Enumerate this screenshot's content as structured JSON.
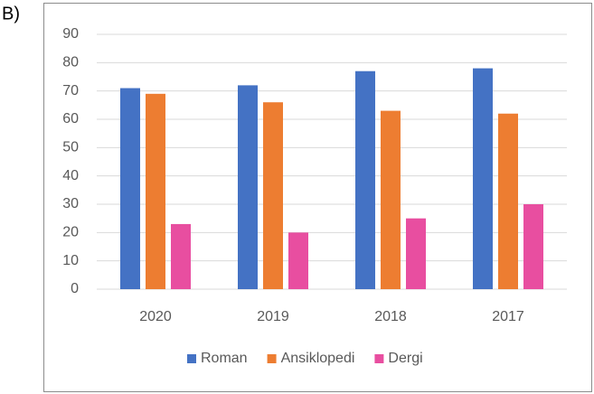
{
  "label": "B)",
  "chart_data": {
    "type": "bar",
    "categories": [
      "2020",
      "2019",
      "2018",
      "2017"
    ],
    "series": [
      {
        "name": "Roman",
        "color": "#4472c4",
        "values": [
          71,
          72,
          77,
          78
        ]
      },
      {
        "name": "Ansiklopedi",
        "color": "#ed7d31",
        "values": [
          69,
          66,
          63,
          62
        ]
      },
      {
        "name": "Dergi",
        "color": "#e84ea0",
        "values": [
          23,
          20,
          25,
          30
        ]
      }
    ],
    "ylim": [
      0,
      90
    ],
    "yticks": [
      0,
      10,
      20,
      30,
      40,
      50,
      60,
      70,
      80,
      90
    ],
    "grid": true,
    "legend": "bottom"
  }
}
